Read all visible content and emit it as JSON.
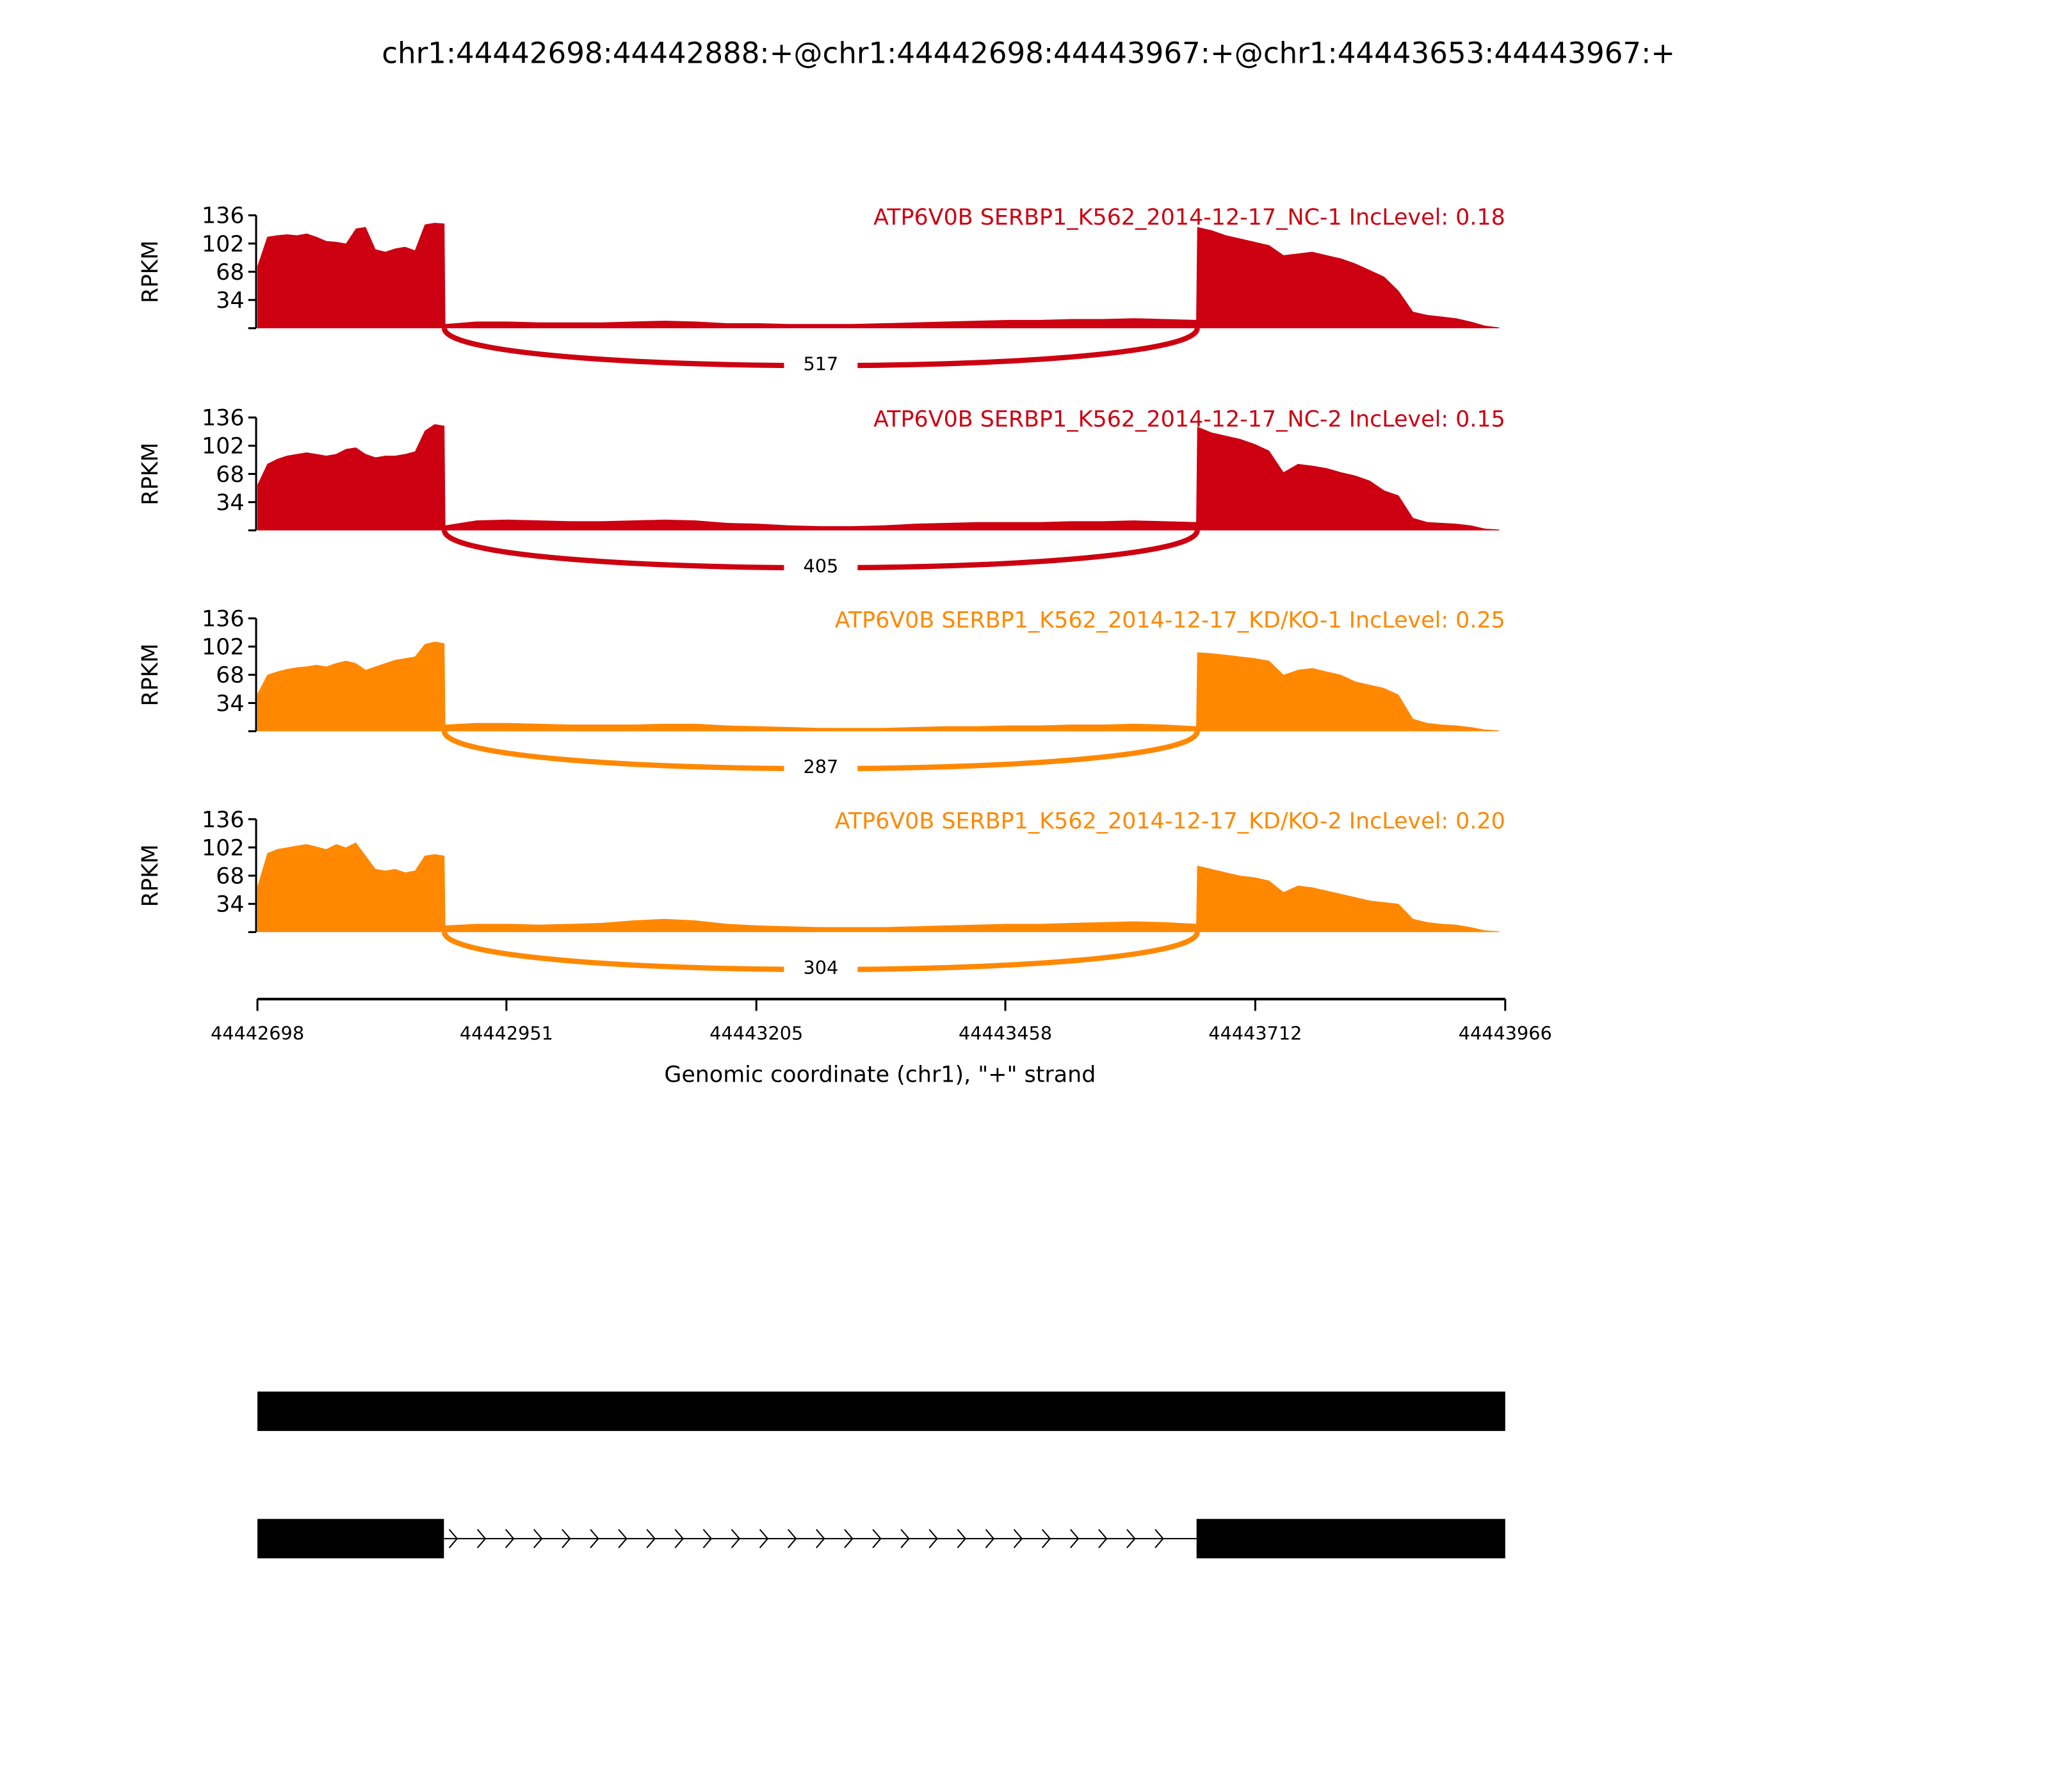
{
  "chart_data": {
    "type": "area",
    "title": "chr1:44442698:44442888:+@chr1:44442698:44443967:+@chr1:44443653:44443967:+",
    "xlabel": "Genomic coordinate (chr1), \"+\" strand",
    "ylabel": "RPKM",
    "xlim": [
      44442698,
      44443966
    ],
    "ylim": [
      0,
      136
    ],
    "xticks": [
      "44442698",
      "44442951",
      "44443205",
      "44443458",
      "44443712",
      "44443966"
    ],
    "yticks": [
      "34",
      "68",
      "102",
      "136"
    ],
    "exons": [
      [
        44442698,
        44442888
      ],
      [
        44443653,
        44443966
      ]
    ],
    "samples": [
      {
        "label": "ATP6V0B SERBP1_K562_2014-12-17_NC-1 IncLevel: 0.18",
        "color": "#cc0011",
        "junction_count": "517",
        "exon1": [
          75,
          110,
          112,
          113,
          112,
          114,
          110,
          105,
          104,
          102,
          120,
          122,
          95,
          92,
          96,
          98,
          94,
          125,
          127,
          126
        ],
        "intron": [
          5,
          8,
          8,
          7,
          7,
          7,
          8,
          9,
          8,
          6,
          6,
          5,
          5,
          5,
          6,
          7,
          8,
          9,
          10,
          10,
          11,
          11,
          12,
          11,
          10
        ],
        "exon2": [
          122,
          118,
          112,
          108,
          104,
          100,
          88,
          90,
          92,
          88,
          84,
          78,
          70,
          62,
          45,
          20,
          16,
          14,
          12,
          8,
          3,
          1
        ]
      },
      {
        "label": "ATP6V0B SERBP1_K562_2014-12-17_NC-2 IncLevel: 0.15",
        "color": "#cc0011",
        "junction_count": "405",
        "exon1": [
          55,
          80,
          86,
          90,
          92,
          94,
          92,
          90,
          92,
          98,
          100,
          92,
          88,
          90,
          90,
          92,
          95,
          120,
          128,
          126
        ],
        "intron": [
          6,
          12,
          13,
          12,
          11,
          11,
          12,
          13,
          12,
          9,
          8,
          6,
          5,
          5,
          6,
          8,
          9,
          10,
          10,
          10,
          11,
          11,
          12,
          11,
          10
        ],
        "exon2": [
          125,
          118,
          114,
          110,
          104,
          96,
          70,
          80,
          78,
          75,
          70,
          66,
          60,
          48,
          42,
          15,
          10,
          9,
          8,
          6,
          2,
          1
        ]
      },
      {
        "label": "ATP6V0B SERBP1_K562_2014-12-17_KD/KO-1 IncLevel: 0.25",
        "color": "#ff8800",
        "junction_count": "287",
        "exon1": [
          45,
          68,
          72,
          75,
          77,
          78,
          80,
          78,
          82,
          85,
          82,
          74,
          78,
          82,
          86,
          88,
          90,
          105,
          108,
          106
        ],
        "intron": [
          8,
          10,
          10,
          9,
          8,
          8,
          8,
          9,
          9,
          7,
          6,
          5,
          4,
          4,
          4,
          5,
          6,
          6,
          7,
          7,
          8,
          8,
          9,
          8,
          6
        ],
        "exon2": [
          95,
          94,
          92,
          90,
          88,
          85,
          68,
          74,
          76,
          72,
          68,
          60,
          56,
          52,
          44,
          15,
          10,
          8,
          7,
          5,
          2,
          1
        ]
      },
      {
        "label": "ATP6V0B SERBP1_K562_2014-12-17_KD/KO-2 IncLevel: 0.20",
        "color": "#ff8800",
        "junction_count": "304",
        "exon1": [
          55,
          95,
          100,
          102,
          104,
          106,
          103,
          100,
          106,
          102,
          108,
          92,
          76,
          74,
          76,
          72,
          74,
          92,
          94,
          92
        ],
        "intron": [
          8,
          10,
          10,
          9,
          10,
          11,
          14,
          16,
          14,
          10,
          8,
          7,
          6,
          6,
          6,
          7,
          8,
          9,
          10,
          10,
          11,
          12,
          13,
          12,
          10
        ],
        "exon2": [
          80,
          76,
          72,
          68,
          66,
          62,
          48,
          56,
          54,
          50,
          46,
          42,
          38,
          36,
          34,
          16,
          12,
          10,
          9,
          6,
          2,
          1
        ]
      }
    ]
  }
}
